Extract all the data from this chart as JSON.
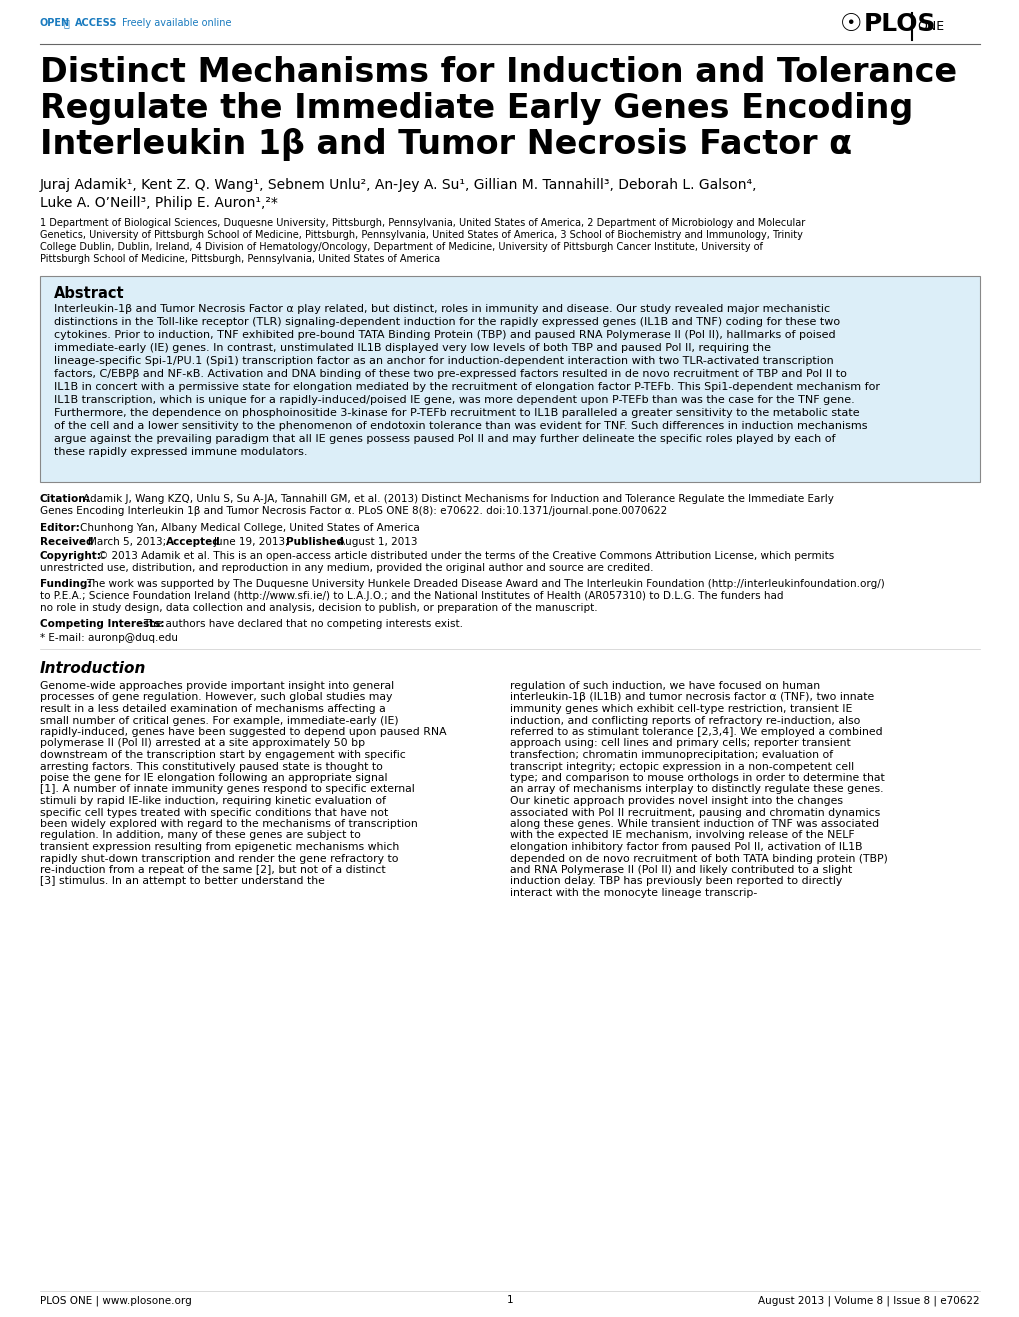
{
  "bg_color": "#ffffff",
  "open_access_color": "#1a7bbf",
  "title_line1": "Distinct Mechanisms for Induction and Tolerance",
  "title_line2": "Regulate the Immediate Early Genes Encoding",
  "title_line3": "Interleukin 1β and Tumor Necrosis Factor α",
  "authors": "Juraj Adamik¹, Kent Z. Q. Wang¹, Sebnem Unlu², An-Jey A. Su¹, Gillian M. Tannahill³, Deborah L. Galson⁴,",
  "authors2": "Luke A. O’Neill³, Philip E. Auron¹,²*",
  "affiliations": "1 Department of Biological Sciences, Duquesne University, Pittsburgh, Pennsylvania, United States of America, 2 Department of Microbiology and Molecular Genetics, University of Pittsburgh School of Medicine, Pittsburgh, Pennsylvania, United States of America, 3 School of Biochemistry and Immunology, Trinity College Dublin, Dublin, Ireland, 4 Division of Hematology/Oncology, Department of Medicine, University of Pittsburgh Cancer Institute, University of Pittsburgh School of Medicine, Pittsburgh, Pennsylvania, United States of America",
  "abstract_title": "Abstract",
  "abstract_bg": "#dceef8",
  "abstract_border": "#aaccdd",
  "abstract_text": "Interleukin-1β and Tumor Necrosis Factor α play related, but distinct, roles in immunity and disease. Our study revealed major mechanistic distinctions in the Toll-like receptor (TLR) signaling-dependent induction for the rapidly expressed genes (IL1B and TNF) coding for these two cytokines. Prior to induction, TNF exhibited pre-bound TATA Binding Protein (TBP) and paused RNA Polymerase II (Pol II), hallmarks of poised immediate-early (IE) genes. In contrast, unstimulated IL1B displayed very low levels of both TBP and paused Pol II, requiring the lineage-specific Spi-1/PU.1 (Spi1) transcription factor as an anchor for induction-dependent interaction with two TLR-activated transcription factors, C/EBPβ and NF-κB. Activation and DNA binding of these two pre-expressed factors resulted in de novo recruitment of TBP and Pol II to IL1B in concert with a permissive state for elongation mediated by the recruitment of elongation factor P-TEFb. This Spi1-dependent mechanism for IL1B transcription, which is unique for a rapidly-induced/poised IE gene, was more dependent upon P-TEFb than was the case for the TNF gene. Furthermore, the dependence on phosphoinositide 3-kinase for P-TEFb recruitment to IL1B paralleled a greater sensitivity to the metabolic state of the cell and a lower sensitivity to the phenomenon of endotoxin tolerance than was evident for TNF. Such differences in induction mechanisms argue against the prevailing paradigm that all IE genes possess paused Pol II and may further delineate the specific roles played by each of these rapidly expressed immune modulators.",
  "citation_label": "Citation:",
  "citation_text": " Adamik J, Wang KZQ, Unlu S, Su A-JA, Tannahill GM, et al. (2013) Distinct Mechanisms for Induction and Tolerance Regulate the Immediate Early Genes Encoding Interleukin 1β and Tumor Necrosis Factor α. PLoS ONE 8(8): e70622. doi:10.1371/journal.pone.0070622",
  "editor_label": "Editor:",
  "editor_text": " Chunhong Yan, Albany Medical College, United States of America",
  "received_label": "Received",
  "received_text": " March 5, 2013; ",
  "accepted_label": "Accepted",
  "accepted_text": " June 19, 2013; ",
  "published_label": "Published",
  "published_text": " August 1, 2013",
  "copyright_label": "Copyright:",
  "copyright_text": " © 2013 Adamik et al. This is an open-access article distributed under the terms of the Creative Commons Attribution License, which permits unrestricted use, distribution, and reproduction in any medium, provided the original author and source are credited.",
  "funding_label": "Funding:",
  "funding_text": " The work was supported by The Duquesne University Hunkele Dreaded Disease Award and The Interleukin Foundation (http://interleukinfoundation.org/) to P.E.A.; Science Foundation Ireland (http://www.sfi.ie/) to L.A.J.O.; and the National Institutes of Health (AR057310) to D.L.G. The funders had no role in study design, data collection and analysis, decision to publish, or preparation of the manuscript.",
  "competing_label": "Competing Interests:",
  "competing_text": " The authors have declared that no competing interests exist.",
  "email_text": "* E-mail: auronp@duq.edu",
  "intro_title": "Introduction",
  "intro_col1": "Genome-wide approaches provide important insight into general processes of gene regulation. However, such global studies may result in a less detailed examination of mechanisms affecting a small number of critical genes. For example, immediate-early (IE) rapidly-induced, genes have been suggested to depend upon paused RNA polymerase II (Pol II) arrested at a site approximately 50 bp downstream of the transcription start by engagement with specific arresting factors. This constitutively paused state is thought to poise the gene for IE elongation following an appropriate signal [1]. A number of innate immunity genes respond to specific external stimuli by rapid IE-like induction, requiring kinetic evaluation of specific cell types treated with specific conditions that have not been widely explored with regard to the mechanisms of transcription regulation. In addition, many of these genes are subject to transient expression resulting from epigenetic mechanisms which rapidly shut-down transcription and render the gene refractory to re-induction from a repeat of the same [2], but not of a distinct [3] stimulus. In an attempt to better understand the",
  "intro_col2": "regulation of such induction, we have focused on human interleukin-1β (IL1B) and tumor necrosis factor α (TNF), two innate immunity genes which exhibit cell-type restriction, transient IE induction, and conflicting reports of refractory re-induction, also referred to as stimulant tolerance [2,3,4]. We employed a combined approach using: cell lines and primary cells; reporter transient transfection; chromatin immunoprecipitation; evaluation of transcript integrity; ectopic expression in a non-competent cell type; and comparison to mouse orthologs in order to determine that an array of mechanisms interplay to distinctly regulate these genes. Our kinetic approach provides novel insight into the changes associated with Pol II recruitment, pausing and chromatin dynamics along these genes. While transient induction of TNF was associated with the expected IE mechanism, involving release of the NELF elongation inhibitory factor from paused Pol II, activation of IL1B depended on de novo recruitment of both TATA binding protein (TBP) and RNA Polymerase II (Pol II) and likely contributed to a slight induction delay. TBP has previously been reported to directly interact with the monocyte lineage transcrip-",
  "footer_left": "PLOS ONE | www.plosone.org",
  "footer_center": "1",
  "footer_right": "August 2013 | Volume 8 | Issue 8 | e70622"
}
